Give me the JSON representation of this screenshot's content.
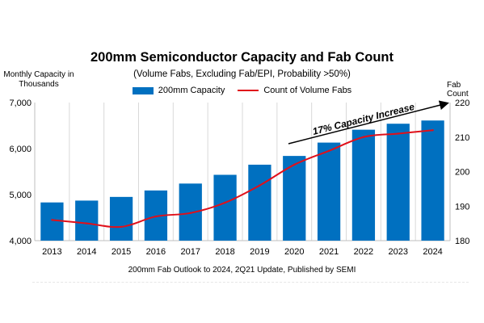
{
  "chart_data": {
    "type": "bar",
    "title": "200mm Semiconductor Capacity and Fab Count",
    "subtitle": "(Volume Fabs, Excluding Fab/EPI, Probability >50%)",
    "ylabel_left": "Monthly Capacity in Thousands",
    "ylabel_right": "Fab Count",
    "source_note": "200mm Fab Outlook to 2024, 2Q21 Update, Published by SEMI",
    "annotation": "17% Capacity Increase",
    "categories": [
      "2013",
      "2014",
      "2015",
      "2016",
      "2017",
      "2018",
      "2019",
      "2020",
      "2021",
      "2022",
      "2023",
      "2024"
    ],
    "series": [
      {
        "name": "200mm Capacity",
        "type": "bar",
        "axis": "left",
        "color": "#0070C0",
        "values": [
          4830,
          4870,
          4950,
          5090,
          5240,
          5430,
          5650,
          5840,
          6130,
          6410,
          6540,
          6610
        ]
      },
      {
        "name": "Count of Volume Fabs",
        "type": "line",
        "axis": "right",
        "color": "#E0101A",
        "values": [
          186,
          185,
          184,
          187,
          188,
          191,
          196,
          202,
          206,
          210,
          211,
          212
        ]
      }
    ],
    "y_left": {
      "min": 4000,
      "max": 7000,
      "ticks": [
        "4,000",
        "5,000",
        "6,000",
        "7,000"
      ]
    },
    "y_right": {
      "min": 180,
      "max": 220,
      "ticks": [
        "180",
        "190",
        "200",
        "210",
        "220"
      ]
    },
    "grid": "vertical",
    "legend_position": "top-center"
  }
}
